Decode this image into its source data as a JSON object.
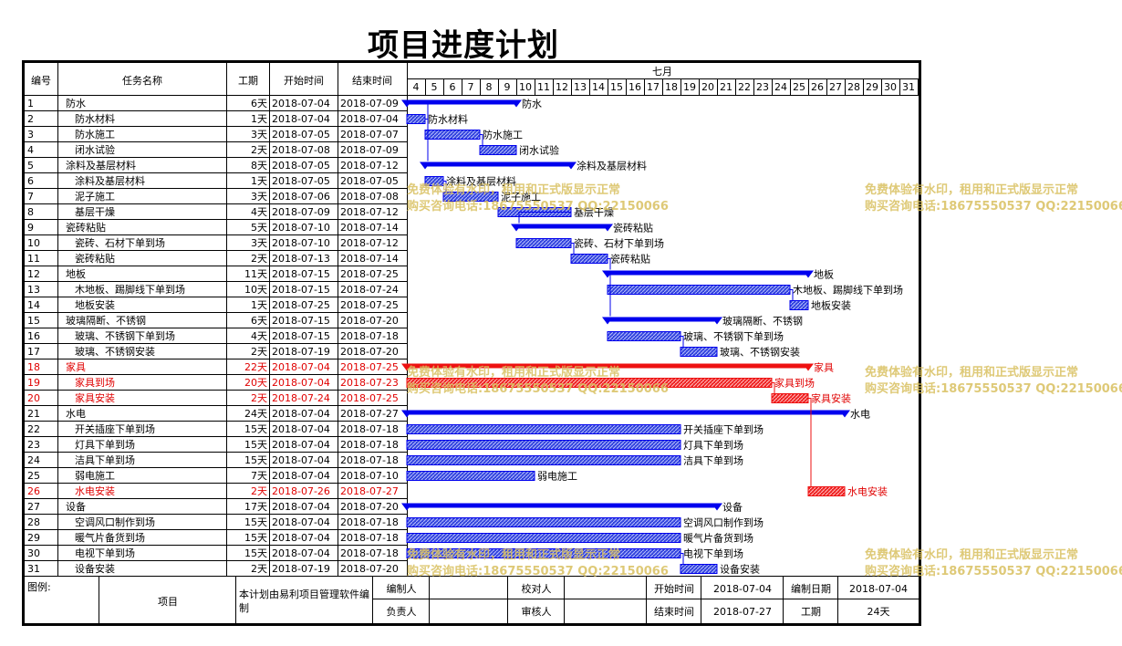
{
  "title": "项目进度计划",
  "headers": {
    "id": "编号",
    "name": "任务名称",
    "duration": "工期",
    "start": "开始时间",
    "end": "结束时间",
    "month": "七月"
  },
  "chart_data": {
    "type": "gantt",
    "days": [
      4,
      5,
      6,
      7,
      8,
      9,
      10,
      11,
      12,
      13,
      14,
      15,
      16,
      17,
      18,
      19,
      20,
      21,
      22,
      23,
      24,
      25,
      26,
      27,
      28,
      29,
      30,
      31
    ],
    "tasks": [
      {
        "id": "1",
        "name": "防水",
        "duration": "6天",
        "start": "2018-07-04",
        "end": "2018-07-09",
        "level": 0,
        "summary": true,
        "critical": false
      },
      {
        "id": "2",
        "name": "防水材料",
        "duration": "1天",
        "start": "2018-07-04",
        "end": "2018-07-04",
        "level": 1,
        "summary": false,
        "critical": false
      },
      {
        "id": "3",
        "name": "防水施工",
        "duration": "3天",
        "start": "2018-07-05",
        "end": "2018-07-07",
        "level": 1,
        "summary": false,
        "critical": false
      },
      {
        "id": "4",
        "name": "闭水试验",
        "duration": "2天",
        "start": "2018-07-08",
        "end": "2018-07-09",
        "level": 1,
        "summary": false,
        "critical": false
      },
      {
        "id": "5",
        "name": "涂料及基层材料",
        "duration": "8天",
        "start": "2018-07-05",
        "end": "2018-07-12",
        "level": 0,
        "summary": true,
        "critical": false
      },
      {
        "id": "6",
        "name": "涂料及基层材料",
        "duration": "1天",
        "start": "2018-07-05",
        "end": "2018-07-05",
        "level": 1,
        "summary": false,
        "critical": false
      },
      {
        "id": "7",
        "name": "泥子施工",
        "duration": "3天",
        "start": "2018-07-06",
        "end": "2018-07-08",
        "level": 1,
        "summary": false,
        "critical": false
      },
      {
        "id": "8",
        "name": "基层干燥",
        "duration": "4天",
        "start": "2018-07-09",
        "end": "2018-07-12",
        "level": 1,
        "summary": false,
        "critical": false
      },
      {
        "id": "9",
        "name": "瓷砖粘贴",
        "duration": "5天",
        "start": "2018-07-10",
        "end": "2018-07-14",
        "level": 0,
        "summary": true,
        "critical": false
      },
      {
        "id": "10",
        "name": "瓷砖、石材下单到场",
        "duration": "3天",
        "start": "2018-07-10",
        "end": "2018-07-12",
        "level": 1,
        "summary": false,
        "critical": false
      },
      {
        "id": "11",
        "name": "瓷砖粘贴",
        "duration": "2天",
        "start": "2018-07-13",
        "end": "2018-07-14",
        "level": 1,
        "summary": false,
        "critical": false
      },
      {
        "id": "12",
        "name": "地板",
        "duration": "11天",
        "start": "2018-07-15",
        "end": "2018-07-25",
        "level": 0,
        "summary": true,
        "critical": false
      },
      {
        "id": "13",
        "name": "木地板、踢脚线下单到场",
        "duration": "10天",
        "start": "2018-07-15",
        "end": "2018-07-24",
        "level": 1,
        "summary": false,
        "critical": false
      },
      {
        "id": "14",
        "name": "地板安装",
        "duration": "1天",
        "start": "2018-07-25",
        "end": "2018-07-25",
        "level": 1,
        "summary": false,
        "critical": false
      },
      {
        "id": "15",
        "name": "玻璃隔断、不锈钢",
        "duration": "6天",
        "start": "2018-07-15",
        "end": "2018-07-20",
        "level": 0,
        "summary": true,
        "critical": false
      },
      {
        "id": "16",
        "name": "玻璃、不锈钢下单到场",
        "duration": "4天",
        "start": "2018-07-15",
        "end": "2018-07-18",
        "level": 1,
        "summary": false,
        "critical": false
      },
      {
        "id": "17",
        "name": "玻璃、不锈钢安装",
        "duration": "2天",
        "start": "2018-07-19",
        "end": "2018-07-20",
        "level": 1,
        "summary": false,
        "critical": false
      },
      {
        "id": "18",
        "name": "家具",
        "duration": "22天",
        "start": "2018-07-04",
        "end": "2018-07-25",
        "level": 0,
        "summary": true,
        "critical": true
      },
      {
        "id": "19",
        "name": "家具到场",
        "duration": "20天",
        "start": "2018-07-04",
        "end": "2018-07-23",
        "level": 1,
        "summary": false,
        "critical": true
      },
      {
        "id": "20",
        "name": "家具安装",
        "duration": "2天",
        "start": "2018-07-24",
        "end": "2018-07-25",
        "level": 1,
        "summary": false,
        "critical": true
      },
      {
        "id": "21",
        "name": "水电",
        "duration": "24天",
        "start": "2018-07-04",
        "end": "2018-07-27",
        "level": 0,
        "summary": true,
        "critical": false
      },
      {
        "id": "22",
        "name": "开关插座下单到场",
        "duration": "15天",
        "start": "2018-07-04",
        "end": "2018-07-18",
        "level": 1,
        "summary": false,
        "critical": false
      },
      {
        "id": "23",
        "name": "灯具下单到场",
        "duration": "15天",
        "start": "2018-07-04",
        "end": "2018-07-18",
        "level": 1,
        "summary": false,
        "critical": false
      },
      {
        "id": "24",
        "name": "洁具下单到场",
        "duration": "15天",
        "start": "2018-07-04",
        "end": "2018-07-18",
        "level": 1,
        "summary": false,
        "critical": false
      },
      {
        "id": "25",
        "name": "弱电施工",
        "duration": "7天",
        "start": "2018-07-04",
        "end": "2018-07-10",
        "level": 1,
        "summary": false,
        "critical": false
      },
      {
        "id": "26",
        "name": "水电安装",
        "duration": "2天",
        "start": "2018-07-26",
        "end": "2018-07-27",
        "level": 1,
        "summary": false,
        "critical": true
      },
      {
        "id": "27",
        "name": "设备",
        "duration": "17天",
        "start": "2018-07-04",
        "end": "2018-07-20",
        "level": 0,
        "summary": true,
        "critical": false
      },
      {
        "id": "28",
        "name": "空调风口制作到场",
        "duration": "15天",
        "start": "2018-07-04",
        "end": "2018-07-18",
        "level": 1,
        "summary": false,
        "critical": false
      },
      {
        "id": "29",
        "name": "暖气片备货到场",
        "duration": "15天",
        "start": "2018-07-04",
        "end": "2018-07-18",
        "level": 1,
        "summary": false,
        "critical": false
      },
      {
        "id": "30",
        "name": "电视下单到场",
        "duration": "15天",
        "start": "2018-07-04",
        "end": "2018-07-18",
        "level": 1,
        "summary": false,
        "critical": false
      },
      {
        "id": "31",
        "name": "设备安装",
        "duration": "2天",
        "start": "2018-07-19",
        "end": "2018-07-20",
        "level": 1,
        "summary": false,
        "critical": false
      }
    ]
  },
  "footer": {
    "legend_label": "图例:",
    "project_label": "项目",
    "software_note": "本计划由易利项目管理软件编制",
    "compiler_label": "编制人",
    "owner_label": "负责人",
    "checker_label": "校对人",
    "reviewer_label": "审核人",
    "start_label": "开始时间",
    "start_value": "2018-07-04",
    "date_label": "编制日期",
    "date_value": "2018-07-04",
    "end_label": "结束时间",
    "end_value": "2018-07-27",
    "duration_label": "工期",
    "duration_value": "24天"
  },
  "watermark": {
    "line1": "免费体验有水印，租用和正式版显示正常",
    "line2": "购买咨询电话:18675550537 QQ:22150066"
  },
  "colors": {
    "bar": "#0000ee",
    "critical": "#ee1111",
    "grid": "#000000"
  }
}
